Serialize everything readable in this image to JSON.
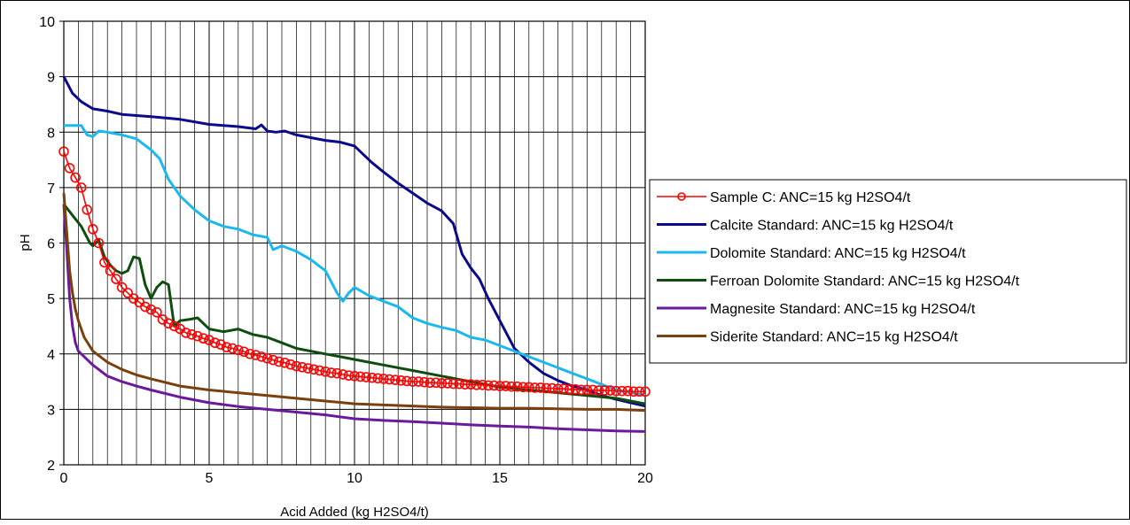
{
  "chart_data": {
    "type": "line",
    "title": "",
    "xlabel": "Acid Added (kg H2SO4/t)",
    "ylabel": "pH",
    "xlim": [
      0,
      20
    ],
    "ylim": [
      2,
      10
    ],
    "x_major_ticks": [
      "0",
      "5",
      "10",
      "15",
      "20"
    ],
    "y_major_ticks": [
      "2",
      "3",
      "4",
      "5",
      "6",
      "7",
      "8",
      "9",
      "10"
    ],
    "x_minor_step": 0.5,
    "grid": true,
    "legend_position": "right",
    "series": [
      {
        "name": "Sample C: ANC=15 kg H2SO4/t",
        "color": "#ff0000",
        "marker": "open-circle",
        "x": [
          0,
          0.2,
          0.4,
          0.6,
          0.8,
          1.0,
          1.2,
          1.4,
          1.6,
          1.8,
          2.0,
          2.2,
          2.4,
          2.6,
          2.8,
          3.0,
          3.2,
          3.4,
          3.6,
          3.8,
          4.0,
          4.2,
          4.4,
          4.6,
          4.8,
          5.0,
          5.2,
          5.4,
          5.6,
          5.8,
          6.0,
          6.2,
          6.4,
          6.6,
          6.8,
          7.0,
          7.2,
          7.4,
          7.6,
          7.8,
          8.0,
          8.2,
          8.4,
          8.6,
          8.8,
          9.0,
          9.2,
          9.4,
          9.6,
          9.8,
          10.0,
          10.2,
          10.4,
          10.6,
          10.8,
          11.0,
          11.2,
          11.4,
          11.6,
          11.8,
          12.0,
          12.2,
          12.4,
          12.6,
          12.8,
          13.0,
          13.2,
          13.4,
          13.6,
          13.8,
          14.0,
          14.2,
          14.4,
          14.6,
          14.8,
          15.0,
          15.2,
          15.4,
          15.6,
          15.8,
          16.0,
          16.2,
          16.4,
          16.6,
          16.8,
          17.0,
          17.2,
          17.4,
          17.6,
          17.8,
          18.0,
          18.2,
          18.4,
          18.6,
          18.8,
          19.0,
          19.2,
          19.4,
          19.6,
          19.8,
          20.0
        ],
        "y": [
          7.65,
          7.35,
          7.18,
          7.0,
          6.6,
          6.25,
          6.0,
          5.65,
          5.5,
          5.35,
          5.2,
          5.1,
          5.0,
          4.93,
          4.85,
          4.8,
          4.75,
          4.62,
          4.55,
          4.5,
          4.45,
          4.38,
          4.35,
          4.32,
          4.28,
          4.25,
          4.2,
          4.17,
          4.12,
          4.1,
          4.07,
          4.04,
          4.0,
          3.98,
          3.95,
          3.92,
          3.89,
          3.86,
          3.84,
          3.81,
          3.78,
          3.76,
          3.74,
          3.72,
          3.7,
          3.68,
          3.66,
          3.65,
          3.63,
          3.61,
          3.6,
          3.59,
          3.58,
          3.57,
          3.56,
          3.55,
          3.54,
          3.53,
          3.52,
          3.51,
          3.5,
          3.5,
          3.49,
          3.48,
          3.48,
          3.47,
          3.47,
          3.46,
          3.46,
          3.45,
          3.45,
          3.44,
          3.44,
          3.43,
          3.43,
          3.42,
          3.42,
          3.41,
          3.41,
          3.4,
          3.4,
          3.39,
          3.39,
          3.38,
          3.38,
          3.37,
          3.37,
          3.36,
          3.36,
          3.35,
          3.35,
          3.35,
          3.34,
          3.34,
          3.34,
          3.33,
          3.33,
          3.33,
          3.32,
          3.32,
          3.32
        ]
      },
      {
        "name": "Calcite Standard: ANC=15 kg H2SO4/t",
        "color": "#0a0a8a",
        "x": [
          0,
          0.3,
          0.6,
          1.0,
          1.5,
          2.0,
          3.0,
          4.0,
          5.0,
          6.0,
          6.6,
          6.8,
          7.0,
          7.3,
          7.6,
          8.0,
          8.5,
          9.0,
          9.5,
          10.0,
          10.3,
          10.6,
          11.0,
          11.5,
          12.0,
          12.5,
          13.0,
          13.4,
          13.7,
          14.0,
          14.3,
          14.6,
          15.0,
          15.5,
          16.0,
          16.5,
          17.0,
          17.5,
          18.0,
          18.5,
          19.0,
          19.5,
          20.0
        ],
        "y": [
          9.0,
          8.7,
          8.55,
          8.42,
          8.38,
          8.32,
          8.28,
          8.23,
          8.14,
          8.1,
          8.06,
          8.13,
          8.02,
          8.0,
          8.02,
          7.95,
          7.9,
          7.85,
          7.82,
          7.75,
          7.6,
          7.45,
          7.28,
          7.08,
          6.9,
          6.72,
          6.58,
          6.35,
          5.8,
          5.55,
          5.35,
          5.0,
          4.6,
          4.1,
          3.85,
          3.65,
          3.52,
          3.42,
          3.35,
          3.25,
          3.18,
          3.12,
          3.06
        ]
      },
      {
        "name": "Dolomite Standard: ANC=15 kg H2SO4/t",
        "color": "#1ab8ee",
        "x": [
          0,
          0.6,
          0.8,
          1.0,
          1.2,
          1.5,
          2.0,
          2.5,
          3.0,
          3.3,
          3.6,
          4.0,
          4.5,
          5.0,
          5.5,
          6.0,
          6.5,
          7.0,
          7.2,
          7.5,
          8.0,
          8.5,
          9.0,
          9.4,
          9.6,
          9.8,
          10.0,
          10.5,
          11.0,
          11.5,
          12.0,
          12.5,
          13.0,
          13.5,
          14.0,
          14.5,
          15.0,
          15.5,
          16.0,
          16.5,
          17.0,
          17.5,
          18.0,
          18.5,
          19.0,
          19.5,
          20.0
        ],
        "y": [
          8.12,
          8.12,
          7.95,
          7.92,
          8.02,
          8.0,
          7.95,
          7.88,
          7.68,
          7.52,
          7.15,
          6.85,
          6.6,
          6.4,
          6.3,
          6.25,
          6.15,
          6.1,
          5.88,
          5.95,
          5.85,
          5.7,
          5.5,
          5.1,
          4.95,
          5.1,
          5.2,
          5.05,
          4.95,
          4.85,
          4.65,
          4.55,
          4.48,
          4.42,
          4.3,
          4.25,
          4.15,
          4.05,
          3.95,
          3.85,
          3.75,
          3.65,
          3.55,
          3.45,
          3.35,
          3.3,
          3.25
        ]
      },
      {
        "name": "Ferroan Dolomite Standard: ANC=15 kg H2SO4/t",
        "color": "#0f4d0f",
        "x": [
          0,
          0.3,
          0.6,
          0.9,
          1.0,
          1.2,
          1.4,
          1.6,
          1.8,
          2.0,
          2.2,
          2.4,
          2.6,
          2.8,
          3.0,
          3.2,
          3.4,
          3.6,
          3.8,
          4.0,
          4.3,
          4.6,
          5.0,
          5.5,
          6.0,
          6.5,
          7.0,
          7.5,
          8.0,
          9.0,
          10.0,
          11.0,
          12.0,
          13.0,
          14.0,
          15.0,
          16.0,
          17.0,
          18.0,
          19.0,
          20.0
        ],
        "y": [
          6.7,
          6.5,
          6.3,
          6.0,
          5.95,
          6.05,
          5.75,
          5.6,
          5.5,
          5.45,
          5.5,
          5.75,
          5.72,
          5.25,
          5.0,
          5.2,
          5.3,
          5.25,
          4.5,
          4.6,
          4.62,
          4.65,
          4.45,
          4.4,
          4.45,
          4.35,
          4.3,
          4.2,
          4.1,
          4.0,
          3.9,
          3.8,
          3.7,
          3.6,
          3.5,
          3.4,
          3.35,
          3.3,
          3.25,
          3.2,
          3.1
        ]
      },
      {
        "name": "Magnesite Standard: ANC=15 kg H2SO4/t",
        "color": "#6a1a9a",
        "x": [
          0,
          0.1,
          0.2,
          0.3,
          0.4,
          0.5,
          0.7,
          1.0,
          1.5,
          2.0,
          2.5,
          3.0,
          4.0,
          5.0,
          6.0,
          7.0,
          8.0,
          9.0,
          10.0,
          11.0,
          12.0,
          13.0,
          14.0,
          15.0,
          16.0,
          17.0,
          18.0,
          19.0,
          20.0
        ],
        "y": [
          6.7,
          5.9,
          5.0,
          4.5,
          4.2,
          4.05,
          3.95,
          3.8,
          3.6,
          3.5,
          3.42,
          3.35,
          3.22,
          3.12,
          3.05,
          3.0,
          2.95,
          2.9,
          2.83,
          2.8,
          2.78,
          2.75,
          2.72,
          2.7,
          2.68,
          2.65,
          2.63,
          2.61,
          2.6
        ]
      },
      {
        "name": "Siderite Standard: ANC=15 kg H2SO4/t",
        "color": "#7a4010",
        "x": [
          0,
          0.1,
          0.2,
          0.3,
          0.4,
          0.5,
          0.7,
          1.0,
          1.5,
          2.0,
          2.5,
          3.0,
          4.0,
          5.0,
          6.0,
          7.0,
          8.0,
          9.0,
          10.0,
          11.0,
          12.0,
          13.0,
          14.0,
          15.0,
          16.0,
          17.0,
          18.0,
          19.0,
          20.0
        ],
        "y": [
          6.9,
          6.2,
          5.5,
          5.1,
          4.8,
          4.6,
          4.3,
          4.05,
          3.85,
          3.72,
          3.62,
          3.55,
          3.42,
          3.35,
          3.3,
          3.25,
          3.2,
          3.15,
          3.1,
          3.08,
          3.06,
          3.04,
          3.03,
          3.02,
          3.02,
          3.01,
          3.0,
          3.0,
          2.98
        ]
      }
    ]
  }
}
